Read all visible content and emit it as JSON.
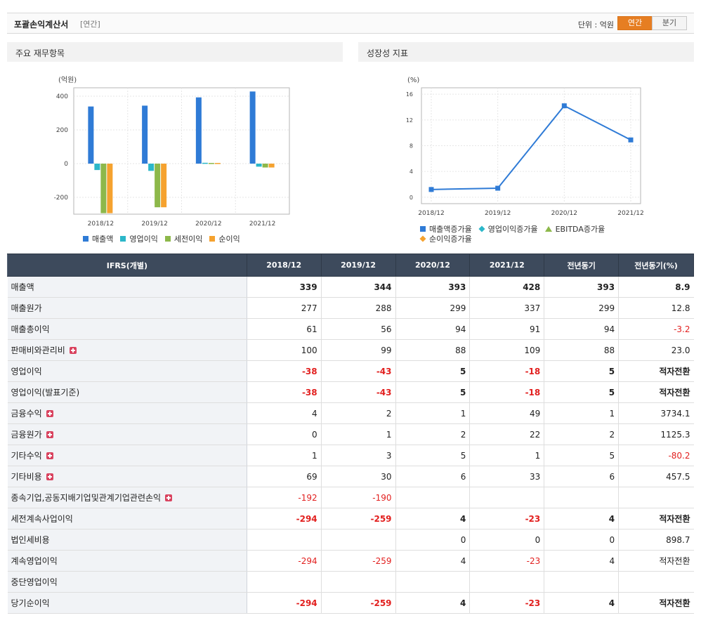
{
  "header": {
    "title": "포괄손익계산서",
    "sub": "[연간]",
    "unit_label": "단위 : 억원",
    "toggle": [
      {
        "label": "연간",
        "active": true
      },
      {
        "label": "분기",
        "active": false
      }
    ]
  },
  "panels": {
    "left_title": "주요 재무항목",
    "right_title": "성장성 지표"
  },
  "chart_data": [
    {
      "type": "bar",
      "title": "주요 재무항목",
      "ylabel": "(억원)",
      "ylim": [
        -300,
        450
      ],
      "yticks": [
        -200,
        0,
        200,
        400
      ],
      "grid": true,
      "legend": "bottom",
      "categories": [
        "2018/12",
        "2019/12",
        "2020/12",
        "2021/12"
      ],
      "series": [
        {
          "name": "매출액",
          "color": "#2f7bd6",
          "values": [
            339,
            344,
            393,
            428
          ]
        },
        {
          "name": "영업이익",
          "color": "#2cb7c9",
          "values": [
            -38,
            -43,
            5,
            -18
          ]
        },
        {
          "name": "세전이익",
          "color": "#8db84a",
          "values": [
            -294,
            -259,
            4,
            -23
          ]
        },
        {
          "name": "순이익",
          "color": "#f5a22f",
          "values": [
            -294,
            -259,
            4,
            -23
          ]
        }
      ]
    },
    {
      "type": "line",
      "title": "성장성 지표",
      "ylabel": "(%)",
      "ylim": [
        -1,
        17
      ],
      "yticks": [
        0,
        4,
        8,
        12,
        16
      ],
      "grid": true,
      "legend": "bottom",
      "categories": [
        "2018/12",
        "2019/12",
        "2020/12",
        "2021/12"
      ],
      "series": [
        {
          "name": "매출액증가율",
          "color": "#2f7bd6",
          "marker": "square",
          "values": [
            1.2,
            1.4,
            14.2,
            8.9
          ]
        },
        {
          "name": "영업이익증가율",
          "color": "#2cb7c9",
          "marker": "diamond",
          "values": [
            null,
            null,
            null,
            null
          ]
        },
        {
          "name": "EBITDA증가율",
          "color": "#8db84a",
          "marker": "triangle",
          "values": [
            null,
            null,
            null,
            null
          ]
        },
        {
          "name": "순이익증가율",
          "color": "#f5a22f",
          "marker": "diamond",
          "values": [
            null,
            null,
            null,
            null
          ]
        }
      ]
    }
  ],
  "table": {
    "headers": [
      "IFRS(개별)",
      "2018/12",
      "2019/12",
      "2020/12",
      "2021/12",
      "전년동기",
      "전년동기(%)"
    ],
    "rows": [
      {
        "label": "매출액",
        "plus": false,
        "bold": true,
        "values": [
          "339",
          "344",
          "393",
          "428",
          "393",
          "8.9"
        ]
      },
      {
        "label": "매출원가",
        "plus": false,
        "bold": false,
        "values": [
          "277",
          "288",
          "299",
          "337",
          "299",
          "12.8"
        ]
      },
      {
        "label": "매출총이익",
        "plus": false,
        "bold": false,
        "values": [
          "61",
          "56",
          "94",
          "91",
          "94",
          "-3.2"
        ]
      },
      {
        "label": "판매비와관리비",
        "plus": true,
        "bold": false,
        "values": [
          "100",
          "99",
          "88",
          "109",
          "88",
          "23.0"
        ]
      },
      {
        "label": "영업이익",
        "plus": false,
        "bold": true,
        "values": [
          "-38",
          "-43",
          "5",
          "-18",
          "5",
          "적자전환"
        ]
      },
      {
        "label": "영업이익(발표기준)",
        "plus": false,
        "bold": true,
        "values": [
          "-38",
          "-43",
          "5",
          "-18",
          "5",
          "적자전환"
        ]
      },
      {
        "label": "금융수익",
        "plus": true,
        "bold": false,
        "values": [
          "4",
          "2",
          "1",
          "49",
          "1",
          "3734.1"
        ]
      },
      {
        "label": "금융원가",
        "plus": true,
        "bold": false,
        "values": [
          "0",
          "1",
          "2",
          "22",
          "2",
          "1125.3"
        ]
      },
      {
        "label": "기타수익",
        "plus": true,
        "bold": false,
        "values": [
          "1",
          "3",
          "5",
          "1",
          "5",
          "-80.2"
        ]
      },
      {
        "label": "기타비용",
        "plus": true,
        "bold": false,
        "values": [
          "69",
          "30",
          "6",
          "33",
          "6",
          "457.5"
        ]
      },
      {
        "label": "종속기업,공동지배기업및관계기업관련손익",
        "plus": true,
        "bold": false,
        "values": [
          "-192",
          "-190",
          "",
          "",
          "",
          ""
        ]
      },
      {
        "label": "세전계속사업이익",
        "plus": false,
        "bold": true,
        "values": [
          "-294",
          "-259",
          "4",
          "-23",
          "4",
          "적자전환"
        ]
      },
      {
        "label": "법인세비용",
        "plus": false,
        "bold": false,
        "values": [
          "",
          "",
          "0",
          "0",
          "0",
          "898.7"
        ]
      },
      {
        "label": "계속영업이익",
        "plus": false,
        "bold": false,
        "values": [
          "-294",
          "-259",
          "4",
          "-23",
          "4",
          "적자전환"
        ]
      },
      {
        "label": "중단영업이익",
        "plus": false,
        "bold": false,
        "values": [
          "",
          "",
          "",
          "",
          "",
          ""
        ]
      },
      {
        "label": "당기순이익",
        "plus": false,
        "bold": true,
        "values": [
          "-294",
          "-259",
          "4",
          "-23",
          "4",
          "적자전환"
        ]
      }
    ]
  }
}
